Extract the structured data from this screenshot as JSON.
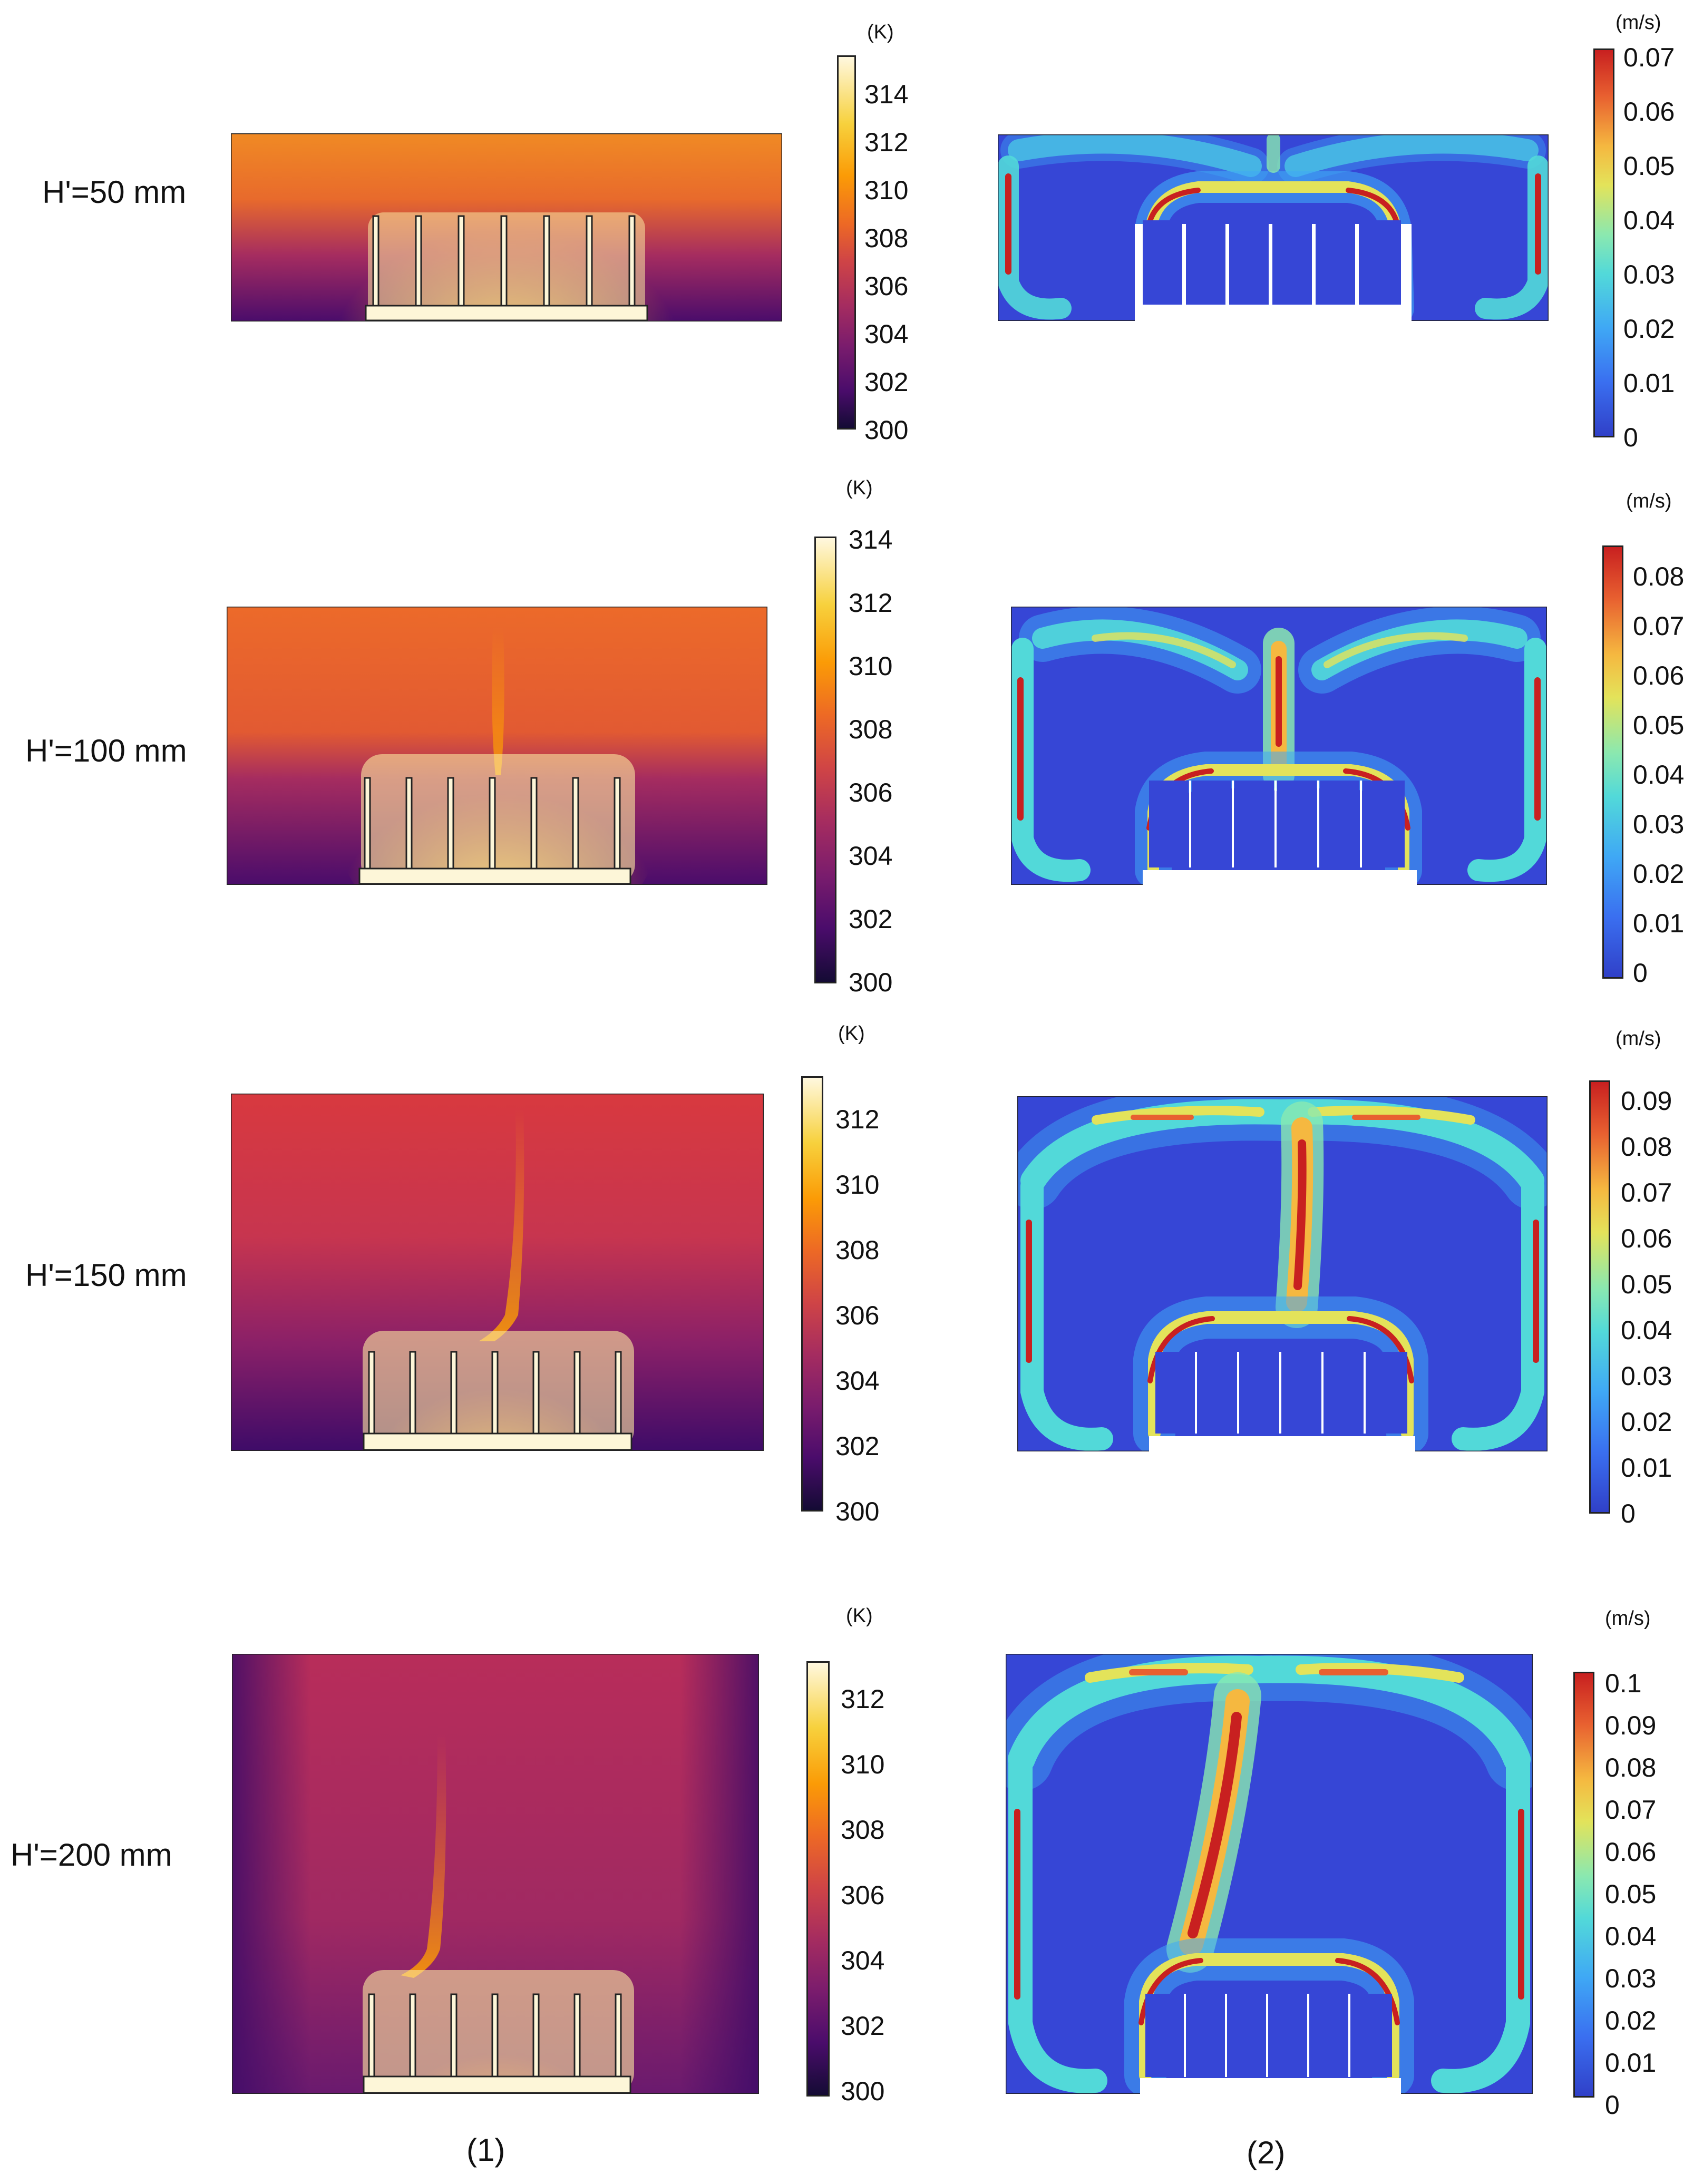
{
  "panel_captions": [
    "(1)",
    "(2)"
  ],
  "colors": {
    "inferno": [
      "#140b34",
      "#4a0c6b",
      "#7a1c6d",
      "#a52c60",
      "#cf4446",
      "#ed6925",
      "#fb9b06",
      "#f7d13d",
      "#fcf3b5",
      "#fff8df"
    ],
    "jet": [
      "#3040c8",
      "#3a6ff0",
      "#3fa8f5",
      "#52d9d9",
      "#8ae8b0",
      "#e3e35a",
      "#f5b840",
      "#e86030",
      "#c82020"
    ],
    "heatsink": "#fdf6d8",
    "fin_outline": "#222222",
    "fin_velocity": "#ffffff",
    "velocity_bg": "#3646d6"
  },
  "rows": [
    {
      "label": "H'=50 mm",
      "temperature": {
        "unit": "(K)",
        "ticks": [
          "314",
          "312",
          "310",
          "308",
          "306",
          "304",
          "302",
          "300"
        ]
      },
      "velocity": {
        "unit": "(m/s)",
        "ticks": [
          "0.07",
          "0.06",
          "0.05",
          "0.04",
          "0.03",
          "0.02",
          "0.01",
          "0"
        ]
      }
    },
    {
      "label": "H'=100 mm",
      "temperature": {
        "unit": "(K)",
        "ticks": [
          "314",
          "312",
          "310",
          "308",
          "306",
          "304",
          "302",
          "300"
        ]
      },
      "velocity": {
        "unit": "(m/s)",
        "ticks": [
          "0.08",
          "0.07",
          "0.06",
          "0.05",
          "0.04",
          "0.03",
          "0.02",
          "0.01",
          "0"
        ]
      }
    },
    {
      "label": "H'=150 mm",
      "temperature": {
        "unit": "(K)",
        "ticks": [
          "312",
          "310",
          "308",
          "306",
          "304",
          "302",
          "300"
        ]
      },
      "velocity": {
        "unit": "(m/s)",
        "ticks": [
          "0.09",
          "0.08",
          "0.07",
          "0.06",
          "0.05",
          "0.04",
          "0.03",
          "0.02",
          "0.01",
          "0"
        ]
      }
    },
    {
      "label": "H'=200 mm",
      "temperature": {
        "unit": "(K)",
        "ticks": [
          "312",
          "310",
          "308",
          "306",
          "304",
          "302",
          "300"
        ]
      },
      "velocity": {
        "unit": "(m/s)",
        "ticks": [
          "0.1",
          "0.09",
          "0.08",
          "0.07",
          "0.06",
          "0.05",
          "0.04",
          "0.03",
          "0.02",
          "0.01",
          "0"
        ]
      }
    }
  ]
}
